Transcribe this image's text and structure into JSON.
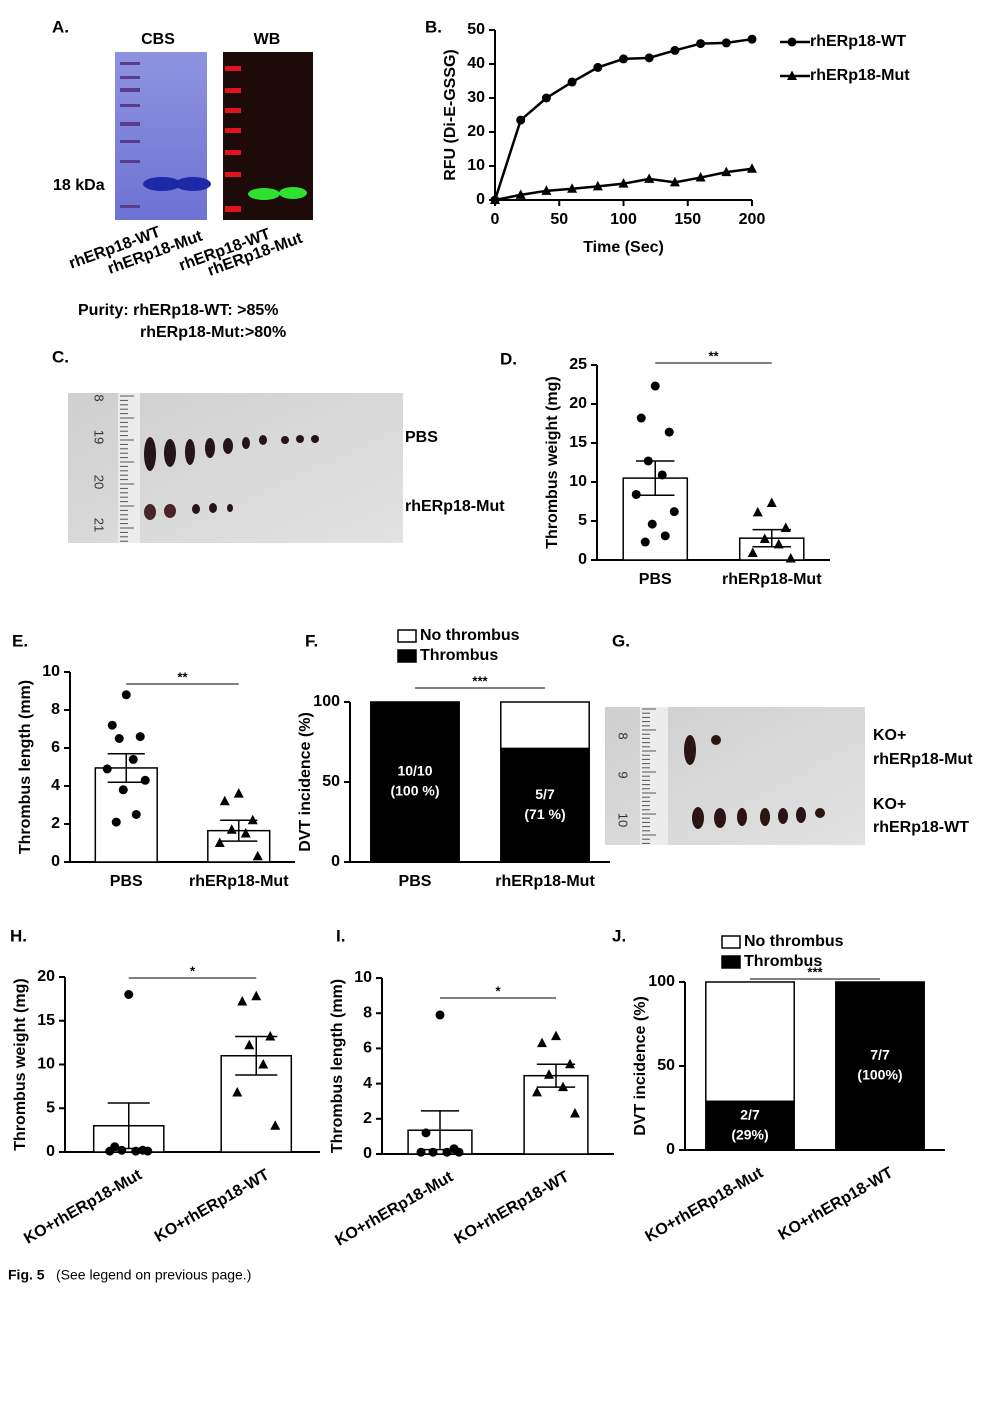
{
  "figures": [
    {
      "panel": "A.",
      "gels": [
        "CBS",
        "WB"
      ],
      "marker": "18 kDa",
      "lanes": [
        "rhERp18-WT",
        "rhERp18-Mut",
        "rhERp18-WT",
        "rhERp18-Mut"
      ],
      "purity": [
        "Purity: rhERp18-WT: >85%",
        "rhERp18-Mut:>80%"
      ]
    },
    {
      "panel": "C.",
      "ruler": [
        "8",
        "19",
        "20",
        "21"
      ],
      "labels": [
        "PBS",
        "rhERp18-Mut"
      ]
    },
    {
      "panel": "G.",
      "ruler": [
        "8",
        "9",
        "10"
      ],
      "labels": [
        [
          "KO+",
          "rhERp18-Mut"
        ],
        [
          "KO+",
          "rhERp18-WT"
        ]
      ]
    }
  ],
  "chart_data": [
    {
      "type": "line",
      "panel": "B.",
      "x": [
        0,
        20,
        40,
        60,
        80,
        100,
        120,
        140,
        160,
        180,
        200
      ],
      "series": [
        {
          "name": "rhERp18-WT",
          "color": "#000000",
          "values": [
            0,
            23.5,
            30,
            34.7,
            39,
            41.5,
            41.8,
            44,
            46,
            46.2,
            47.3
          ]
        },
        {
          "name": "rhERp18-Mut",
          "color": "#000000",
          "values": [
            0,
            1.5,
            2.7,
            3.3,
            4,
            4.8,
            6.2,
            5.2,
            6.6,
            8.2,
            9.2
          ]
        }
      ],
      "markers": [
        "circle",
        "triangle"
      ],
      "xlim": [
        0,
        200
      ],
      "xticks": [
        0,
        50,
        100,
        150,
        200
      ],
      "ylim": [
        0,
        50
      ],
      "yticks": [
        0,
        10,
        20,
        30,
        40,
        50
      ],
      "xlabel": "Time (Sec)",
      "ylabel": "RFU (Di-E-GSSG)",
      "legend": "right"
    },
    {
      "type": "bar",
      "panel": "D.",
      "categories": [
        "PBS",
        "rhERp18-Mut"
      ],
      "values": [
        10.5,
        2.8
      ],
      "errors": [
        2.2,
        1.1
      ],
      "points": [
        [
          22.3,
          18.2,
          16.4,
          12.7,
          10.9,
          8.4,
          6.2,
          4.6,
          3.1,
          2.3
        ],
        [
          7.3,
          6.1,
          4.1,
          2.7,
          2.0,
          0.9,
          0.2
        ]
      ],
      "markers": [
        "circle",
        "triangle"
      ],
      "color": "#ffffff",
      "ylim": [
        0,
        25
      ],
      "yticks": [
        0,
        5,
        10,
        15,
        20,
        25
      ],
      "ylabel": "Thrombus weight (mg)",
      "significance": "**"
    },
    {
      "type": "bar",
      "panel": "E.",
      "categories": [
        "PBS",
        "rhERp18-Mut"
      ],
      "values": [
        4.95,
        1.65
      ],
      "errors": [
        0.75,
        0.55
      ],
      "points": [
        [
          8.8,
          7.2,
          6.6,
          6.5,
          5.4,
          4.9,
          4.3,
          3.8,
          2.5,
          2.1
        ],
        [
          3.6,
          3.2,
          2.2,
          1.7,
          1.5,
          1.0,
          0.3
        ]
      ],
      "markers": [
        "circle",
        "triangle"
      ],
      "color": "#ffffff",
      "ylim": [
        0,
        10
      ],
      "yticks": [
        0,
        2,
        4,
        6,
        8,
        10
      ],
      "ylabel": "Thrombus length (mm)",
      "significance": "**"
    },
    {
      "type": "stacked_bar",
      "panel": "F.",
      "categories": [
        "PBS",
        "rhERp18-Mut"
      ],
      "series": [
        {
          "name": "Thrombus",
          "color": "#000000",
          "values": [
            100,
            71
          ],
          "value_labels": [
            [
              "10/10",
              "(100 %)"
            ],
            [
              "5/7",
              "(71 %)"
            ]
          ]
        },
        {
          "name": "No thrombus",
          "color": "#ffffff",
          "values": [
            0,
            29
          ]
        }
      ],
      "ylim": [
        0,
        100
      ],
      "yticks": [
        0,
        50,
        100
      ],
      "ylabel": "DVT incidence (%)",
      "significance": "***",
      "legend": "top"
    },
    {
      "type": "bar",
      "panel": "H.",
      "categories": [
        "KO+rhERp18-Mut",
        "KO+rhERp18-WT"
      ],
      "values": [
        3.0,
        11.0
      ],
      "errors": [
        2.6,
        2.2
      ],
      "points": [
        [
          18.0,
          0.6,
          0.2,
          0.2,
          0.1,
          0.1,
          0.1
        ],
        [
          17.8,
          17.2,
          13.2,
          12.2,
          10.0,
          6.8,
          3.0
        ]
      ],
      "markers": [
        "circle",
        "triangle"
      ],
      "color": "#ffffff",
      "ylim": [
        0,
        20
      ],
      "yticks": [
        0,
        5,
        10,
        15,
        20
      ],
      "ylabel": "Thrombus weight (mg)",
      "significance": "*"
    },
    {
      "type": "bar",
      "panel": "I.",
      "categories": [
        "KO+rhERp18-Mut",
        "KO+rhERp18-WT"
      ],
      "values": [
        1.35,
        4.45
      ],
      "errors": [
        1.1,
        0.65
      ],
      "points": [
        [
          7.9,
          1.2,
          0.3,
          0.1,
          0.1,
          0.1,
          0.1
        ],
        [
          6.7,
          6.3,
          5.1,
          4.5,
          3.8,
          3.5,
          2.3
        ]
      ],
      "markers": [
        "circle",
        "triangle"
      ],
      "color": "#ffffff",
      "ylim": [
        0,
        10
      ],
      "yticks": [
        0,
        2,
        4,
        6,
        8,
        10
      ],
      "ylabel": "Thrombus length (mm)",
      "significance": "*"
    },
    {
      "type": "stacked_bar",
      "panel": "J.",
      "categories": [
        "KO+rhERp18-Mut",
        "KO+rhERp18-WT"
      ],
      "series": [
        {
          "name": "Thrombus",
          "color": "#000000",
          "values": [
            29,
            100
          ],
          "value_labels": [
            [
              "2/7",
              "(29%)"
            ],
            [
              "7/7",
              "(100%)"
            ]
          ]
        },
        {
          "name": "No thrombus",
          "color": "#ffffff",
          "values": [
            71,
            0
          ]
        }
      ],
      "ylim": [
        0,
        100
      ],
      "yticks": [
        0,
        50,
        100
      ],
      "ylabel": "DVT incidence (%)",
      "significance": "***",
      "legend": "top"
    }
  ],
  "caption": {
    "label": "Fig. 5",
    "text": "(See legend on previous page.)"
  }
}
